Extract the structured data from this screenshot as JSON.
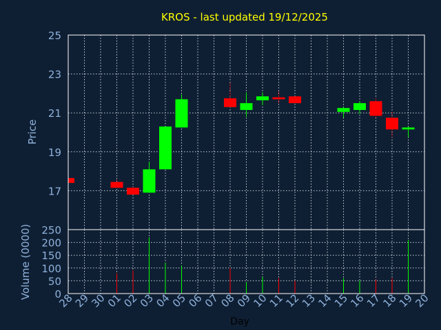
{
  "chart_data": {
    "type": "candlestick",
    "title": "KROS - last updated 19/12/2025",
    "xlabel": "Day",
    "ylabel_price": "Price",
    "ylabel_volume": "Volume (0000)",
    "x_ticks": [
      "28",
      "29",
      "30",
      "01",
      "02",
      "03",
      "04",
      "05",
      "06",
      "07",
      "08",
      "09",
      "10",
      "11",
      "12",
      "13",
      "14",
      "15",
      "16",
      "17",
      "18",
      "19",
      "20"
    ],
    "price_ylim": [
      15,
      25
    ],
    "price_ticks": [
      17,
      19,
      21,
      23,
      25
    ],
    "volume_ylim": [
      0,
      250
    ],
    "volume_ticks": [
      0,
      50,
      100,
      150,
      200,
      250
    ],
    "grid": true,
    "colors": {
      "up": "#00ff00",
      "down": "#ff0000",
      "wick_down": "#ff0000",
      "wick_up": "#00ff00"
    },
    "candles": [
      {
        "day": "28",
        "open": 17.65,
        "high": 17.65,
        "low": 17.35,
        "close": 17.4,
        "volume": 0
      },
      {
        "day": "01",
        "open": 17.45,
        "high": 17.55,
        "low": 17.15,
        "close": 17.15,
        "volume": 80
      },
      {
        "day": "02",
        "open": 17.15,
        "high": 17.2,
        "low": 16.8,
        "close": 16.8,
        "volume": 90
      },
      {
        "day": "03",
        "open": 16.9,
        "high": 18.5,
        "low": 16.9,
        "close": 18.1,
        "volume": 220
      },
      {
        "day": "04",
        "open": 18.1,
        "high": 20.3,
        "low": 18.1,
        "close": 20.3,
        "volume": 120
      },
      {
        "day": "05",
        "open": 20.25,
        "high": 21.95,
        "low": 20.25,
        "close": 21.7,
        "volume": 110
      },
      {
        "day": "08",
        "open": 21.75,
        "high": 22.55,
        "low": 21.3,
        "close": 21.3,
        "volume": 100
      },
      {
        "day": "09",
        "open": 21.15,
        "high": 22.05,
        "low": 20.8,
        "close": 21.5,
        "volume": 45
      },
      {
        "day": "10",
        "open": 21.65,
        "high": 22.05,
        "low": 21.4,
        "close": 21.85,
        "volume": 65
      },
      {
        "day": "11",
        "open": 21.8,
        "high": 22.1,
        "low": 21.5,
        "close": 21.7,
        "volume": 60
      },
      {
        "day": "12",
        "open": 21.85,
        "high": 21.85,
        "low": 21.5,
        "close": 21.5,
        "volume": 50
      },
      {
        "day": "15",
        "open": 21.05,
        "high": 21.3,
        "low": 20.75,
        "close": 21.25,
        "volume": 60
      },
      {
        "day": "16",
        "open": 21.15,
        "high": 21.6,
        "low": 20.95,
        "close": 21.5,
        "volume": 50
      },
      {
        "day": "17",
        "open": 21.6,
        "high": 21.75,
        "low": 20.75,
        "close": 20.85,
        "volume": 55
      },
      {
        "day": "18",
        "open": 20.75,
        "high": 21.05,
        "low": 19.75,
        "close": 20.15,
        "volume": 60
      },
      {
        "day": "19",
        "open": 20.15,
        "high": 20.3,
        "low": 19.75,
        "close": 20.25,
        "volume": 210
      }
    ]
  }
}
